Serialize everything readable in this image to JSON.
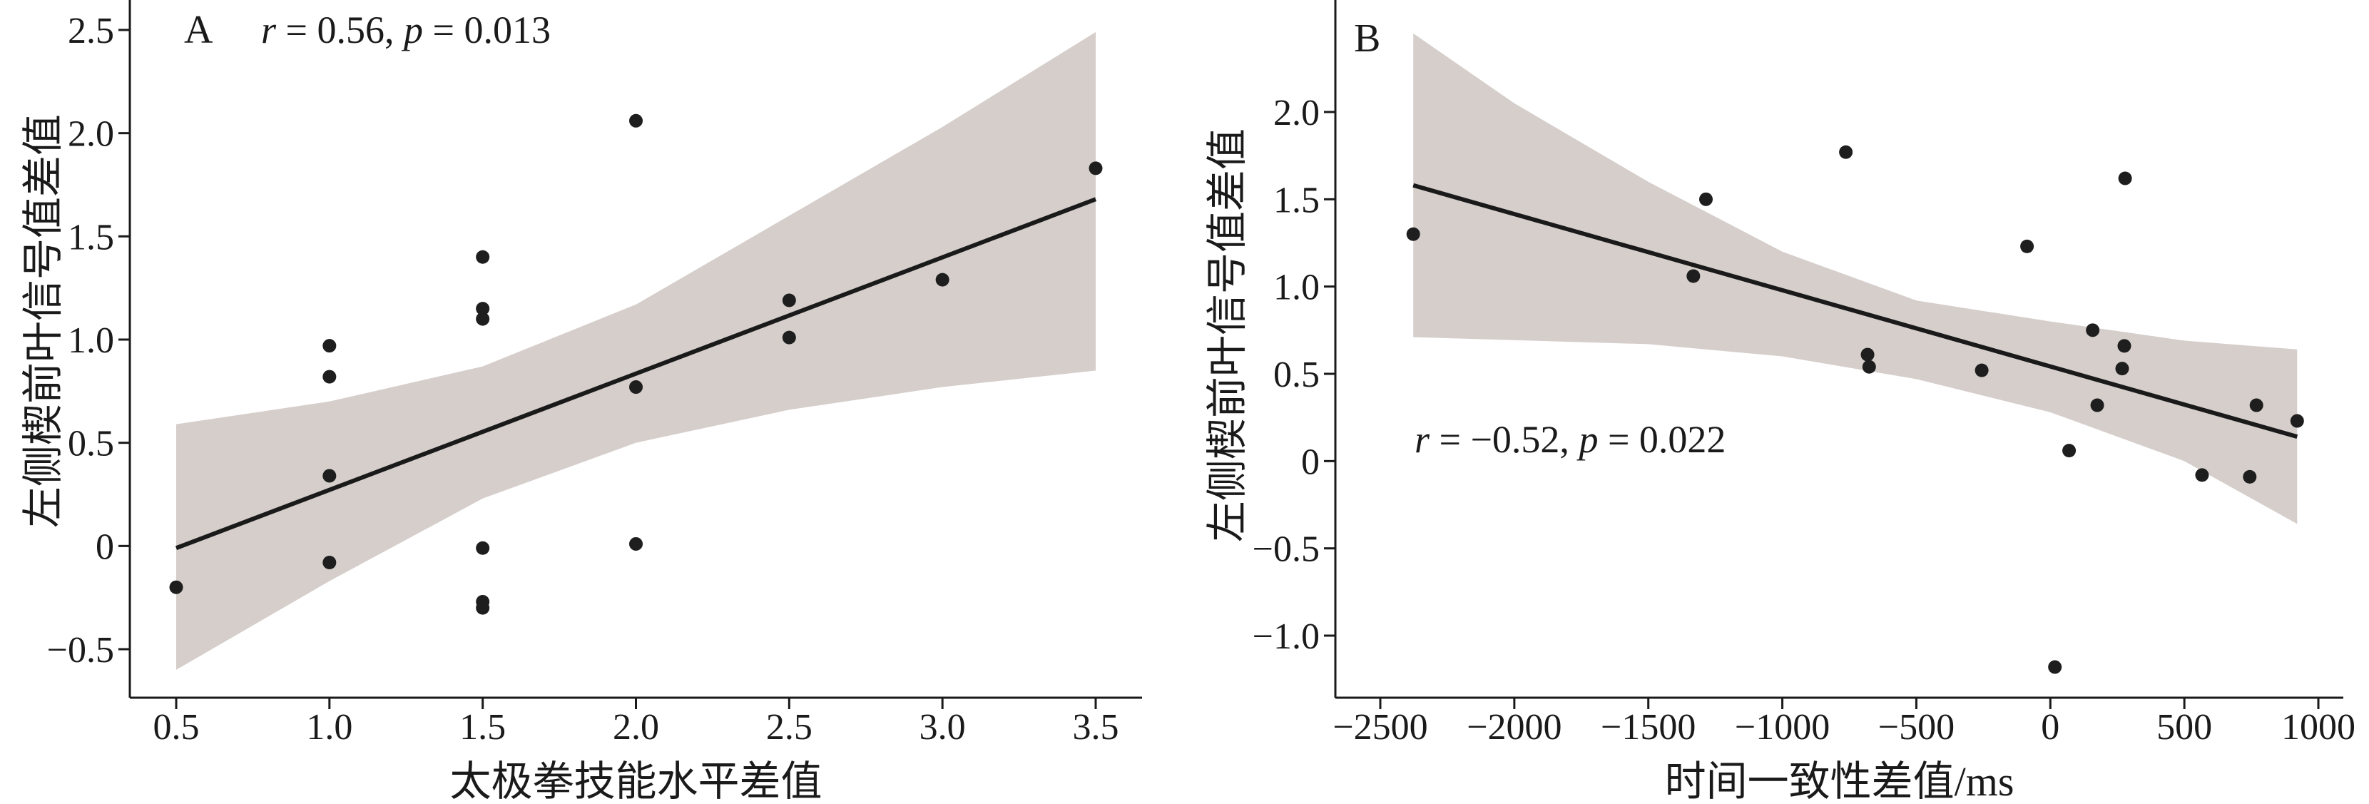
{
  "chart_data": [
    {
      "type": "scatter",
      "panel_label": "A",
      "annotation": {
        "r_symbol": "r",
        "r_text": " = 0.56, ",
        "p_symbol": "p",
        "p_text": " = 0.013"
      },
      "xlabel": "太极拳技能水平差值",
      "ylabel": "左侧楔前叶信号值差值",
      "xlim": [
        0.35,
        3.65
      ],
      "ylim": [
        -0.75,
        2.6
      ],
      "xticks": [
        0.5,
        1.0,
        1.5,
        2.0,
        2.5,
        3.0,
        3.5
      ],
      "xtick_labels": [
        "0.5",
        "1.0",
        "1.5",
        "2.0",
        "2.5",
        "3.0",
        "3.5"
      ],
      "yticks": [
        -0.5,
        0,
        0.5,
        1.0,
        1.5,
        2.0,
        2.5
      ],
      "ytick_labels": [
        "−0.5",
        "0",
        "0.5",
        "1.0",
        "1.5",
        "2.0",
        "2.5"
      ],
      "grid": false,
      "points": [
        [
          0.5,
          -0.2
        ],
        [
          1.0,
          0.97
        ],
        [
          1.0,
          0.82
        ],
        [
          1.0,
          0.34
        ],
        [
          1.0,
          -0.08
        ],
        [
          1.5,
          1.4
        ],
        [
          1.5,
          1.15
        ],
        [
          1.5,
          1.1
        ],
        [
          1.5,
          -0.01
        ],
        [
          1.5,
          -0.27
        ],
        [
          1.5,
          -0.3
        ],
        [
          2.0,
          2.06
        ],
        [
          2.0,
          0.77
        ],
        [
          2.0,
          0.01
        ],
        [
          2.5,
          1.19
        ],
        [
          2.5,
          1.01
        ],
        [
          3.0,
          1.29
        ],
        [
          3.5,
          1.83
        ]
      ],
      "fit_line": [
        [
          0.5,
          -0.01
        ],
        [
          3.5,
          1.68
        ]
      ],
      "ci_upper": [
        [
          0.5,
          0.59
        ],
        [
          1.0,
          0.7
        ],
        [
          1.5,
          0.87
        ],
        [
          2.0,
          1.17
        ],
        [
          2.5,
          1.6
        ],
        [
          3.0,
          2.03
        ],
        [
          3.5,
          2.49
        ]
      ],
      "ci_lower": [
        [
          0.5,
          -0.6
        ],
        [
          1.0,
          -0.17
        ],
        [
          1.5,
          0.23
        ],
        [
          2.0,
          0.5
        ],
        [
          2.5,
          0.66
        ],
        [
          3.0,
          0.77
        ],
        [
          3.5,
          0.85
        ]
      ]
    },
    {
      "type": "scatter",
      "panel_label": "B",
      "annotation": {
        "r_symbol": "r",
        "r_text": " = −0.52, ",
        "p_symbol": "p",
        "p_text": " = 0.022"
      },
      "xlabel": "时间一致性差值/ms",
      "ylabel": "左侧楔前叶信号值差值",
      "xlim": [
        -2665,
        1095
      ],
      "ylim": [
        -1.38,
        2.65
      ],
      "xticks": [
        -2500,
        -2000,
        -1500,
        -1000,
        -500,
        0,
        500,
        1000
      ],
      "xtick_labels": [
        "−2500",
        "−2000",
        "−1500",
        "−1000",
        "−500",
        "0",
        "500",
        "1000"
      ],
      "yticks": [
        -1.0,
        -0.5,
        0,
        0.5,
        1.0,
        1.5,
        2.0
      ],
      "ytick_labels": [
        "−1.0",
        "−0.5",
        "0",
        "0.5",
        "1.0",
        "1.5",
        "2.0"
      ],
      "grid": false,
      "points": [
        [
          -2377,
          1.3
        ],
        [
          -1332,
          1.06
        ],
        [
          -1285,
          1.5
        ],
        [
          -763,
          1.77
        ],
        [
          -682,
          0.61
        ],
        [
          -676,
          0.54
        ],
        [
          -256,
          0.52
        ],
        [
          -87,
          1.23
        ],
        [
          17,
          -1.18
        ],
        [
          70,
          0.06
        ],
        [
          158,
          0.75
        ],
        [
          175,
          0.32
        ],
        [
          268,
          0.53
        ],
        [
          276,
          0.66
        ],
        [
          279,
          1.62
        ],
        [
          566,
          -0.08
        ],
        [
          744,
          -0.09
        ],
        [
          769,
          0.32
        ],
        [
          921,
          0.23
        ]
      ],
      "fit_line": [
        [
          -2377,
          1.58
        ],
        [
          921,
          0.14
        ]
      ],
      "ci_upper": [
        [
          -2377,
          2.45
        ],
        [
          -2000,
          2.05
        ],
        [
          -1500,
          1.6
        ],
        [
          -1000,
          1.2
        ],
        [
          -500,
          0.92
        ],
        [
          0,
          0.8
        ],
        [
          500,
          0.69
        ],
        [
          921,
          0.64
        ]
      ],
      "ci_lower": [
        [
          -2377,
          0.71
        ],
        [
          -1500,
          0.67
        ],
        [
          -1000,
          0.6
        ],
        [
          -500,
          0.47
        ],
        [
          0,
          0.28
        ],
        [
          500,
          0.0
        ],
        [
          921,
          -0.36
        ]
      ]
    }
  ]
}
